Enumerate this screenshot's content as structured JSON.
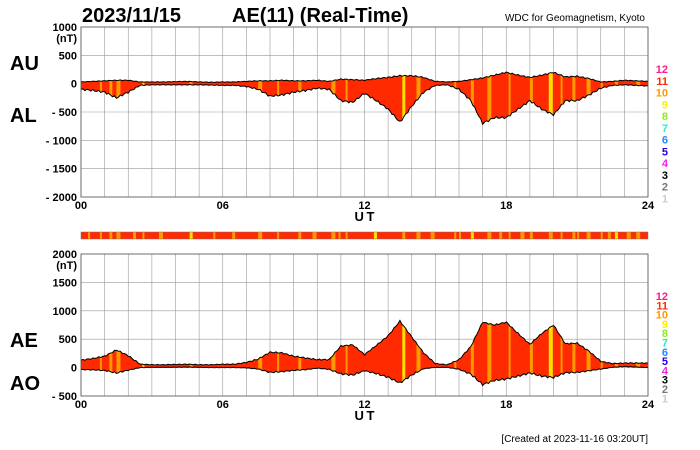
{
  "header": {
    "date": "2023/11/15",
    "title": "AE(11) (Real-Time)",
    "source": "WDC for Geomagnetism, Kyoto"
  },
  "footer": {
    "created": "[Created at 2023-11-16 03:20UT]"
  },
  "colors": {
    "fill_main": "#ff2a00",
    "fill_alt": "#ff9900",
    "fill_yellow": "#ffe000",
    "grid": "#999999",
    "line": "#000000"
  },
  "station_legend": [
    {
      "label": "12",
      "color": "#ff1a8c"
    },
    {
      "label": "11",
      "color": "#ff2a00"
    },
    {
      "label": "10",
      "color": "#ff9900"
    },
    {
      "label": "9",
      "color": "#ffee00"
    },
    {
      "label": "8",
      "color": "#88ee22"
    },
    {
      "label": "7",
      "color": "#22eecc"
    },
    {
      "label": "6",
      "color": "#2288ff"
    },
    {
      "label": "5",
      "color": "#2200ee"
    },
    {
      "label": "4",
      "color": "#ee22ee"
    },
    {
      "label": "3",
      "color": "#000000"
    },
    {
      "label": "2",
      "color": "#777777"
    },
    {
      "label": "1",
      "color": "#cccccc"
    }
  ],
  "chart_data": [
    {
      "type": "area",
      "name": "AU/AL",
      "series_labels": [
        "AU",
        "AL"
      ],
      "ylabel": "(nT)",
      "xlabel": "U T",
      "ylim": [
        -2000,
        1000
      ],
      "xlim": [
        0,
        24
      ],
      "yticks": [
        "1000",
        "500",
        "0",
        "-500",
        "-1000",
        "-1500",
        "-2000"
      ],
      "ytick_values": [
        1000,
        500,
        0,
        -500,
        -1000,
        -1500,
        -2000
      ],
      "xticks": [
        "00",
        "06",
        "12",
        "18",
        "24"
      ],
      "xtick_values": [
        0,
        6,
        12,
        18,
        24
      ],
      "grid": true,
      "x": [
        0,
        0.5,
        1,
        1.5,
        2,
        2.5,
        3,
        3.5,
        4,
        4.5,
        5,
        5.5,
        6,
        6.5,
        7,
        7.5,
        8,
        8.5,
        9,
        9.5,
        10,
        10.5,
        11,
        11.5,
        12,
        12.5,
        13,
        13.5,
        14,
        14.5,
        15,
        15.5,
        16,
        16.5,
        17,
        17.5,
        18,
        18.5,
        19,
        19.5,
        20,
        20.5,
        21,
        21.5,
        22,
        22.5,
        23,
        23.5,
        24
      ],
      "series": [
        {
          "name": "AU",
          "values": [
            30,
            40,
            50,
            60,
            60,
            30,
            30,
            30,
            35,
            40,
            30,
            25,
            30,
            30,
            40,
            50,
            50,
            60,
            50,
            50,
            60,
            40,
            80,
            70,
            60,
            90,
            110,
            140,
            140,
            110,
            40,
            30,
            40,
            70,
            100,
            150,
            200,
            150,
            110,
            150,
            200,
            120,
            130,
            90,
            30,
            40,
            60,
            50,
            40
          ]
        },
        {
          "name": "AL",
          "values": [
            -100,
            -120,
            -150,
            -250,
            -150,
            -30,
            -20,
            -20,
            -20,
            -20,
            -20,
            -25,
            -30,
            -30,
            -50,
            -100,
            -220,
            -200,
            -150,
            -120,
            -80,
            -100,
            -300,
            -330,
            -170,
            -300,
            -450,
            -680,
            -400,
            -150,
            -30,
            -20,
            -100,
            -300,
            -700,
            -600,
            -600,
            -450,
            -300,
            -450,
            -550,
            -300,
            -300,
            -200,
            -80,
            -30,
            -20,
            -30,
            -40
          ]
        }
      ]
    },
    {
      "type": "area",
      "name": "AE/AO",
      "series_labels": [
        "AE",
        "AO"
      ],
      "ylabel": "(nT)",
      "xlabel": "U T",
      "ylim": [
        -500,
        2000
      ],
      "xlim": [
        0,
        24
      ],
      "yticks": [
        "2000",
        "1500",
        "1000",
        "500",
        "0",
        "-500"
      ],
      "ytick_values": [
        2000,
        1500,
        1000,
        500,
        0,
        -500
      ],
      "xticks": [
        "00",
        "06",
        "12",
        "18",
        "24"
      ],
      "xtick_values": [
        0,
        6,
        12,
        18,
        24
      ],
      "grid": true,
      "derived_from": "AE = AU - AL, AO = (AU + AL) / 2"
    }
  ],
  "alt_color_hours": [
    0.8,
    1.2,
    1.5,
    2.6,
    4.6,
    7.5,
    8.3,
    9.2,
    10.6,
    11.2,
    13.6,
    14.2,
    15.8,
    16.5,
    17.2,
    18.1,
    19.0,
    19.8,
    20.3,
    20.8,
    21.4,
    22.0,
    22.6,
    23.5
  ]
}
